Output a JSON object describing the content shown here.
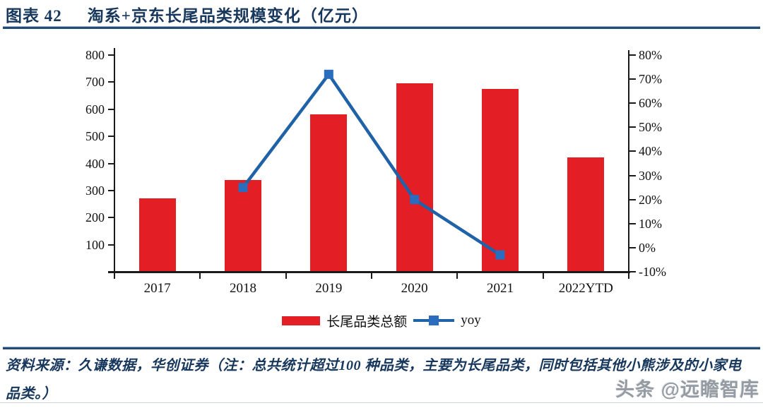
{
  "header": {
    "figure_label": "图表 42",
    "title": "淘系+京东长尾品类规模变化（亿元）"
  },
  "chart_data": {
    "type": "bar+line",
    "categories": [
      "2017",
      "2018",
      "2019",
      "2020",
      "2021",
      "2022YTD"
    ],
    "series": [
      {
        "name": "长尾品类总额",
        "type": "bar",
        "axis": "left",
        "color": "#e31e25",
        "values": [
          270,
          338,
          580,
          696,
          674,
          422
        ]
      },
      {
        "name": "yoy",
        "type": "line",
        "axis": "right",
        "color": "#2062a8",
        "marker_color": "#2a6cbe",
        "values": [
          null,
          25,
          72,
          20,
          -3,
          null
        ]
      }
    ],
    "left_axis": {
      "min": 0,
      "max": 800,
      "tick_labels": [
        "800",
        "700",
        "600",
        "500",
        "400",
        "300",
        "200",
        "100"
      ]
    },
    "right_axis": {
      "min": -10,
      "max": 80,
      "tick_labels": [
        "80%",
        "70%",
        "60%",
        "50%",
        "40%",
        "30%",
        "20%",
        "10%",
        "0%",
        "-10%"
      ]
    },
    "grid": false,
    "legend_position": "bottom"
  },
  "footer": {
    "source_text": "资料来源：久谦数据，华创证券（注：总共统计超过100 种品类，主要为长尾品类，同时包括其他小熊涉及的小家电品类。）",
    "watermark": "头条 @远瞻智库"
  },
  "colors": {
    "title_navy": "#17375d",
    "rule_navy": "#234a74",
    "axis_black": "#1a1a1a",
    "watermark_gray": "#949ba2"
  }
}
